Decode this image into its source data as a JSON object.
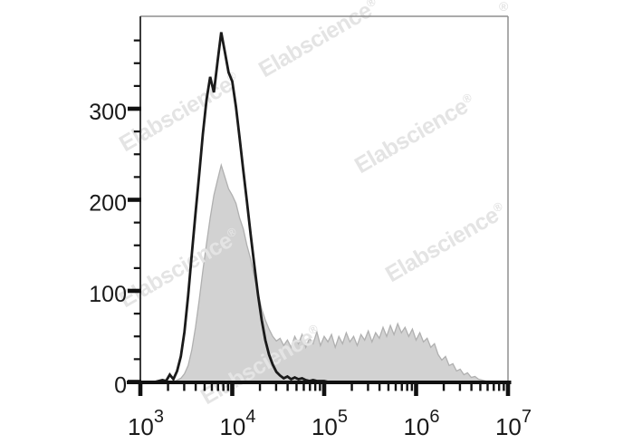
{
  "figure": {
    "watermark": {
      "text": "Elabscience",
      "registered_mark": "®"
    },
    "colors": {
      "histogram_outline": "#1a1a1a",
      "histogram_fill": "#d2d2d2",
      "histogram_fill_stroke": "#b0b0b0",
      "axis_color": "#111111",
      "frame_color": "#8f8f8f",
      "y_axis_line_color": "#3c3c3c",
      "watermark_color": "#e4e4e4",
      "label_color": "#1a1a1a"
    }
  },
  "chart_data": {
    "type": "area",
    "subtype": "flow-cytometry-overlay-histogram",
    "title": "",
    "xlabel": "",
    "ylabel": "",
    "x_scale": "log10",
    "x_range_log10": [
      3,
      7
    ],
    "ylim": [
      0,
      400
    ],
    "grid": false,
    "legend_position": "none",
    "x_tick_base": "10",
    "x_tick_exponents": [
      "3",
      "4",
      "5",
      "6",
      "7"
    ],
    "x_minor_ticks_per_decade": [
      2,
      3,
      4,
      5,
      6,
      7,
      8,
      9
    ],
    "y_tick_values": [
      0,
      100,
      200,
      300
    ],
    "y_tick_labels": [
      "0",
      "100",
      "200",
      "300"
    ],
    "y_minor_tick_step": 25,
    "y_minor_tick_max": 375,
    "x_log10_start": 3.0,
    "x_log10_step": 0.04,
    "series": [
      {
        "name": "control (open black histogram)",
        "style": "open-black-line",
        "values": [
          0,
          0,
          0,
          0,
          0,
          1,
          2,
          1,
          8,
          3,
          12,
          28,
          55,
          95,
          140,
          185,
          228,
          272,
          310,
          335,
          318,
          352,
          384,
          362,
          340,
          330,
          302,
          268,
          232,
          198,
          162,
          128,
          96,
          68,
          46,
          30,
          19,
          11,
          7,
          4,
          6,
          3,
          5,
          3,
          4,
          2,
          1,
          2,
          1,
          1,
          1,
          0,
          0,
          0,
          0,
          0,
          0,
          0,
          0,
          0,
          0,
          0,
          0,
          0,
          0,
          0,
          0,
          0,
          0,
          0,
          0,
          0,
          0,
          0,
          0,
          0,
          0,
          0,
          0,
          0,
          0,
          0,
          0,
          0,
          0,
          0,
          0,
          0,
          0,
          0,
          0,
          0,
          0,
          0,
          0,
          0,
          0,
          0,
          0,
          0,
          0
        ]
      },
      {
        "name": "stained sample (gray filled histogram)",
        "style": "filled-gray",
        "values": [
          0,
          0,
          0,
          0,
          0,
          0,
          0,
          0,
          0,
          0,
          2,
          4,
          9,
          18,
          35,
          60,
          90,
          122,
          152,
          180,
          205,
          222,
          238,
          225,
          212,
          205,
          196,
          180,
          168,
          150,
          135,
          115,
          98,
          80,
          68,
          58,
          50,
          45,
          48,
          40,
          46,
          38,
          50,
          42,
          52,
          38,
          48,
          42,
          55,
          40,
          50,
          44,
          52,
          38,
          50,
          42,
          54,
          44,
          50,
          40,
          52,
          46,
          56,
          44,
          54,
          48,
          60,
          50,
          62,
          52,
          64,
          54,
          60,
          50,
          58,
          46,
          54,
          44,
          48,
          38,
          42,
          30,
          24,
          28,
          18,
          20,
          12,
          14,
          8,
          10,
          5,
          6,
          3,
          2,
          1,
          1,
          0,
          0,
          0,
          0,
          0
        ]
      }
    ]
  }
}
